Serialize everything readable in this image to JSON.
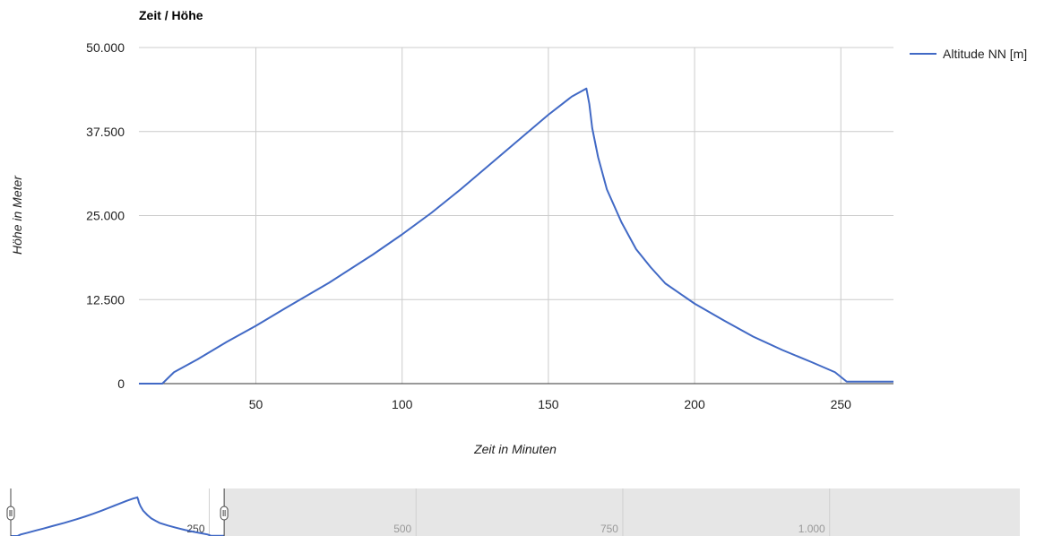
{
  "chart_data": {
    "type": "line",
    "title": "Zeit / Höhe",
    "xlabel": "Zeit in Minuten",
    "ylabel": "Höhe in Meter",
    "xlim": [
      10,
      268
    ],
    "ylim": [
      0,
      50000
    ],
    "x_ticks": [
      50,
      100,
      150,
      200,
      250
    ],
    "x_tick_labels": [
      "50",
      "100",
      "150",
      "200",
      "250"
    ],
    "y_ticks": [
      0,
      12500,
      25000,
      37500,
      50000
    ],
    "y_tick_labels": [
      "0",
      "12.500",
      "25.000",
      "37.500",
      "50.000"
    ],
    "grid": true,
    "legend_position": "right",
    "colors": {
      "series": "#4169c5",
      "grid": "#cccccc",
      "range_bg": "#e6e6e6"
    },
    "series": [
      {
        "name": "Altitude NN [m]",
        "x": [
          10,
          18,
          22,
          30,
          40,
          50,
          60,
          75,
          90,
          100,
          110,
          120,
          130,
          140,
          150,
          158,
          163,
          164,
          165,
          167,
          170,
          175,
          180,
          185,
          190,
          200,
          210,
          220,
          230,
          240,
          248,
          252,
          260,
          268
        ],
        "y": [
          0,
          0,
          1700,
          3600,
          6200,
          8600,
          11200,
          15000,
          19200,
          22200,
          25400,
          28900,
          32600,
          36300,
          40000,
          42700,
          43900,
          41600,
          38000,
          33700,
          28900,
          24000,
          20000,
          17300,
          14900,
          11900,
          9400,
          7000,
          5000,
          3200,
          1700,
          300,
          300,
          300
        ]
      }
    ],
    "range_selector": {
      "x_ticks": [
        250,
        500,
        750,
        1000
      ],
      "x_tick_labels": [
        "250",
        "500",
        "750",
        "1.000"
      ],
      "xlim": [
        10,
        1230
      ],
      "selected_range": [
        10,
        268
      ]
    }
  }
}
